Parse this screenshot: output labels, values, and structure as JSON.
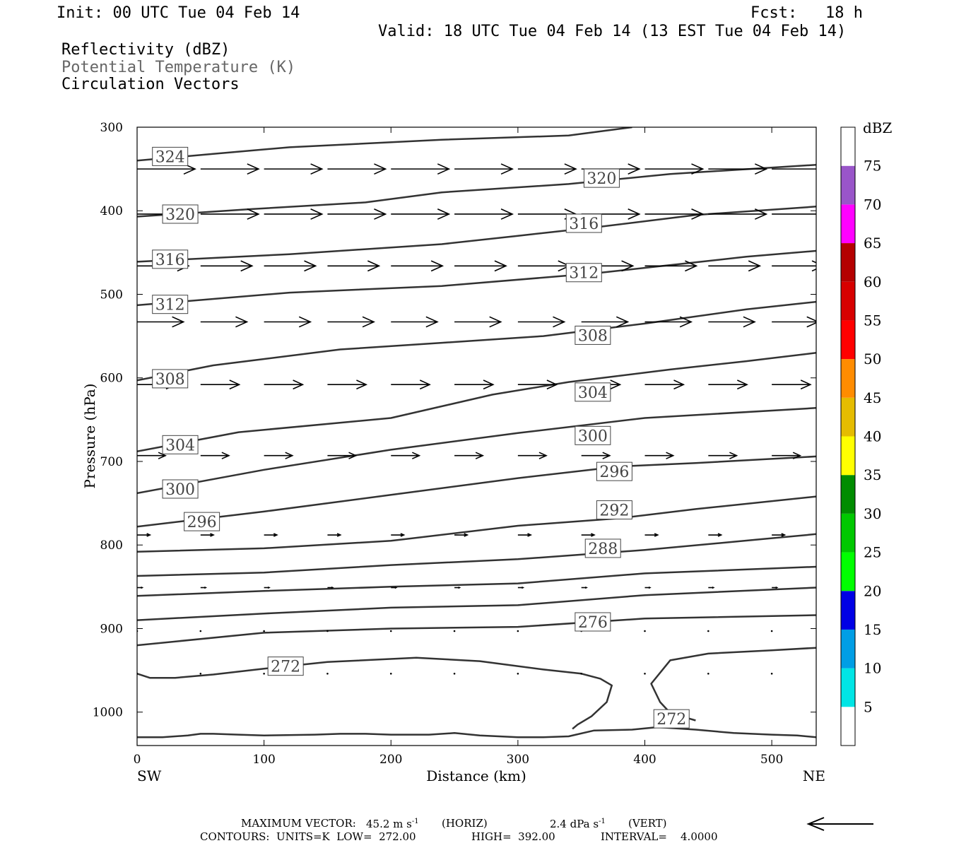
{
  "header": {
    "init": "Init: 00 UTC Tue 04 Feb 14",
    "fcst_label": "Fcst:",
    "fcst_value": "18 h",
    "valid": "Valid: 18 UTC Tue 04 Feb 14 (13 EST Tue 04 Feb 14)",
    "fields": [
      "Reflectivity (dBZ)",
      "Potential Temperature (K)",
      "Circulation Vectors"
    ]
  },
  "colors": {
    "contour": "#333333",
    "vector": "#000000",
    "potential_temp_label": "#666666"
  },
  "footer": {
    "max_vector_label": "MAXIMUM VECTOR:",
    "max_vector_horiz": "45.2 m s",
    "horiz_tag": "(HORIZ)",
    "max_vector_vert": "2.4 dPa s",
    "vert_tag": "(VERT)",
    "contours": "CONTOURS:  UNITS=K  LOW=  272.00",
    "high": "HIGH=  392.00",
    "interval": "INTERVAL=    4.0000"
  },
  "chart_data": {
    "type": "cross-section",
    "title": "",
    "xlabel": "Distance (km)",
    "ylabel": "Pressure (hPa)",
    "xlim": [
      0,
      535
    ],
    "ylim": [
      1040,
      300
    ],
    "x_ticks": [
      0,
      100,
      200,
      300,
      400,
      500
    ],
    "y_ticks": [
      300,
      400,
      500,
      600,
      700,
      800,
      900,
      1000
    ],
    "x_end_labels": {
      "left": "SW",
      "right": "NE"
    },
    "colorbar": {
      "unit": "dBZ",
      "ticks": [
        5,
        10,
        15,
        20,
        25,
        30,
        35,
        40,
        45,
        50,
        55,
        60,
        65,
        70,
        75
      ],
      "colors": [
        "#ffffff",
        "#00e5e5",
        "#009ee5",
        "#0000e5",
        "#00ff00",
        "#00c800",
        "#008c00",
        "#ffff00",
        "#e5bc00",
        "#ff8c00",
        "#ff0000",
        "#d70000",
        "#b40000",
        "#ff00ff",
        "#9955c9",
        "#ffffff"
      ]
    },
    "isentropes": [
      {
        "theta": 324,
        "points": [
          [
            0,
            340
          ],
          [
            60,
            332
          ],
          [
            120,
            324
          ],
          [
            240,
            315
          ],
          [
            340,
            310
          ],
          [
            390,
            300
          ]
        ]
      },
      {
        "theta": 320,
        "points": [
          [
            0,
            407
          ],
          [
            90,
            398
          ],
          [
            180,
            390
          ],
          [
            240,
            378
          ],
          [
            340,
            368
          ],
          [
            420,
            356
          ],
          [
            535,
            345
          ]
        ]
      },
      {
        "theta": 316,
        "points": [
          [
            0,
            461
          ],
          [
            120,
            452
          ],
          [
            240,
            440
          ],
          [
            300,
            430
          ],
          [
            360,
            420
          ],
          [
            440,
            405
          ],
          [
            535,
            395
          ]
        ]
      },
      {
        "theta": 312,
        "points": [
          [
            0,
            513
          ],
          [
            120,
            498
          ],
          [
            240,
            490
          ],
          [
            360,
            475
          ],
          [
            420,
            465
          ],
          [
            480,
            455
          ],
          [
            535,
            448
          ]
        ]
      },
      {
        "theta": 308,
        "points": [
          [
            0,
            603
          ],
          [
            60,
            585
          ],
          [
            160,
            566
          ],
          [
            240,
            558
          ],
          [
            320,
            550
          ],
          [
            400,
            535
          ],
          [
            480,
            518
          ],
          [
            535,
            509
          ]
        ]
      },
      {
        "theta": 304,
        "points": [
          [
            0,
            688
          ],
          [
            80,
            665
          ],
          [
            200,
            648
          ],
          [
            280,
            620
          ],
          [
            340,
            605
          ],
          [
            420,
            590
          ],
          [
            480,
            580
          ],
          [
            535,
            570
          ]
        ]
      },
      {
        "theta": 300,
        "points": [
          [
            0,
            738
          ],
          [
            100,
            710
          ],
          [
            200,
            686
          ],
          [
            300,
            666
          ],
          [
            400,
            648
          ],
          [
            535,
            636
          ]
        ]
      },
      {
        "theta": 296,
        "points": [
          [
            0,
            778
          ],
          [
            100,
            760
          ],
          [
            200,
            740
          ],
          [
            300,
            720
          ],
          [
            380,
            706
          ],
          [
            440,
            702
          ],
          [
            535,
            694
          ]
        ]
      },
      {
        "theta": 292,
        "points": [
          [
            0,
            808
          ],
          [
            100,
            804
          ],
          [
            200,
            795
          ],
          [
            300,
            777
          ],
          [
            380,
            768
          ],
          [
            440,
            757
          ],
          [
            535,
            742
          ]
        ]
      },
      {
        "theta": 288,
        "points": [
          [
            0,
            837
          ],
          [
            100,
            833
          ],
          [
            200,
            824
          ],
          [
            300,
            817
          ],
          [
            400,
            806
          ],
          [
            535,
            787
          ]
        ]
      },
      {
        "theta": 284,
        "points": [
          [
            0,
            861
          ],
          [
            100,
            855
          ],
          [
            200,
            850
          ],
          [
            300,
            846
          ],
          [
            400,
            834
          ],
          [
            535,
            826
          ]
        ]
      },
      {
        "theta": 280,
        "points": [
          [
            0,
            890
          ],
          [
            100,
            882
          ],
          [
            200,
            875
          ],
          [
            300,
            872
          ],
          [
            400,
            860
          ],
          [
            535,
            851
          ]
        ]
      },
      {
        "theta": 276,
        "points": [
          [
            0,
            920
          ],
          [
            100,
            905
          ],
          [
            200,
            900
          ],
          [
            300,
            898
          ],
          [
            400,
            888
          ],
          [
            535,
            884
          ]
        ]
      },
      {
        "theta": 272,
        "points": [
          [
            0,
            954
          ],
          [
            10,
            959
          ],
          [
            30,
            959
          ],
          [
            60,
            955
          ],
          [
            100,
            948
          ],
          [
            150,
            940
          ],
          [
            220,
            935
          ],
          [
            270,
            939
          ],
          [
            320,
            949
          ],
          [
            350,
            954
          ],
          [
            365,
            960
          ],
          [
            374,
            968
          ],
          [
            370,
            988
          ],
          [
            358,
            1005
          ],
          [
            347,
            1015
          ],
          [
            343,
            1020
          ]
        ]
      },
      {
        "theta": 272,
        "points": [
          [
            535,
            923
          ],
          [
            500,
            926
          ],
          [
            450,
            930
          ],
          [
            420,
            938
          ],
          [
            405,
            966
          ],
          [
            412,
            988
          ],
          [
            420,
            1001
          ],
          [
            440,
            1010
          ]
        ]
      },
      {
        "theta": 272,
        "points": [
          [
            0,
            1030
          ],
          [
            20,
            1030
          ],
          [
            40,
            1028
          ],
          [
            50,
            1026
          ],
          [
            60,
            1026
          ],
          [
            80,
            1027
          ],
          [
            100,
            1028
          ],
          [
            140,
            1027
          ],
          [
            160,
            1026
          ],
          [
            180,
            1026
          ],
          [
            200,
            1027
          ],
          [
            230,
            1027
          ],
          [
            250,
            1025
          ],
          [
            270,
            1028
          ],
          [
            300,
            1030
          ],
          [
            320,
            1030
          ],
          [
            340,
            1029
          ],
          [
            360,
            1022
          ],
          [
            390,
            1021
          ],
          [
            410,
            1018
          ],
          [
            440,
            1021
          ],
          [
            470,
            1025
          ],
          [
            500,
            1027
          ],
          [
            520,
            1028
          ],
          [
            535,
            1030
          ]
        ]
      }
    ],
    "isentrope_labels": [
      {
        "text": "324",
        "x": 26,
        "p": 335
      },
      {
        "text": "320",
        "x": 366,
        "p": 361
      },
      {
        "text": "320",
        "x": 34,
        "p": 404
      },
      {
        "text": "316",
        "x": 352,
        "p": 415
      },
      {
        "text": "316",
        "x": 26,
        "p": 458
      },
      {
        "text": "312",
        "x": 352,
        "p": 474
      },
      {
        "text": "312",
        "x": 26,
        "p": 512
      },
      {
        "text": "308",
        "x": 359,
        "p": 549
      },
      {
        "text": "308",
        "x": 26,
        "p": 601
      },
      {
        "text": "304",
        "x": 359,
        "p": 617
      },
      {
        "text": "304",
        "x": 34,
        "p": 680
      },
      {
        "text": "300",
        "x": 359,
        "p": 669
      },
      {
        "text": "300",
        "x": 34,
        "p": 733
      },
      {
        "text": "296",
        "x": 376,
        "p": 712
      },
      {
        "text": "296",
        "x": 51,
        "p": 772
      },
      {
        "text": "292",
        "x": 376,
        "p": 758
      },
      {
        "text": "288",
        "x": 367,
        "p": 804
      },
      {
        "text": "276",
        "x": 359,
        "p": 892
      },
      {
        "text": "272",
        "x": 117,
        "p": 945
      },
      {
        "text": "272",
        "x": 421,
        "p": 1008
      }
    ],
    "vector_rows": [
      {
        "p": 350,
        "u": 45
      },
      {
        "p": 404,
        "u": 45
      },
      {
        "p": 466,
        "u": 40
      },
      {
        "p": 533,
        "u": 36
      },
      {
        "p": 608,
        "u": 30
      },
      {
        "p": 693,
        "u": 22
      },
      {
        "p": 788,
        "u": 10
      },
      {
        "p": 851,
        "u": 4
      },
      {
        "p": 903,
        "u": 1
      },
      {
        "p": 954,
        "u": 0
      }
    ],
    "vector_x": [
      0,
      50,
      100,
      150,
      200,
      250,
      300,
      350,
      400,
      450,
      500
    ]
  }
}
